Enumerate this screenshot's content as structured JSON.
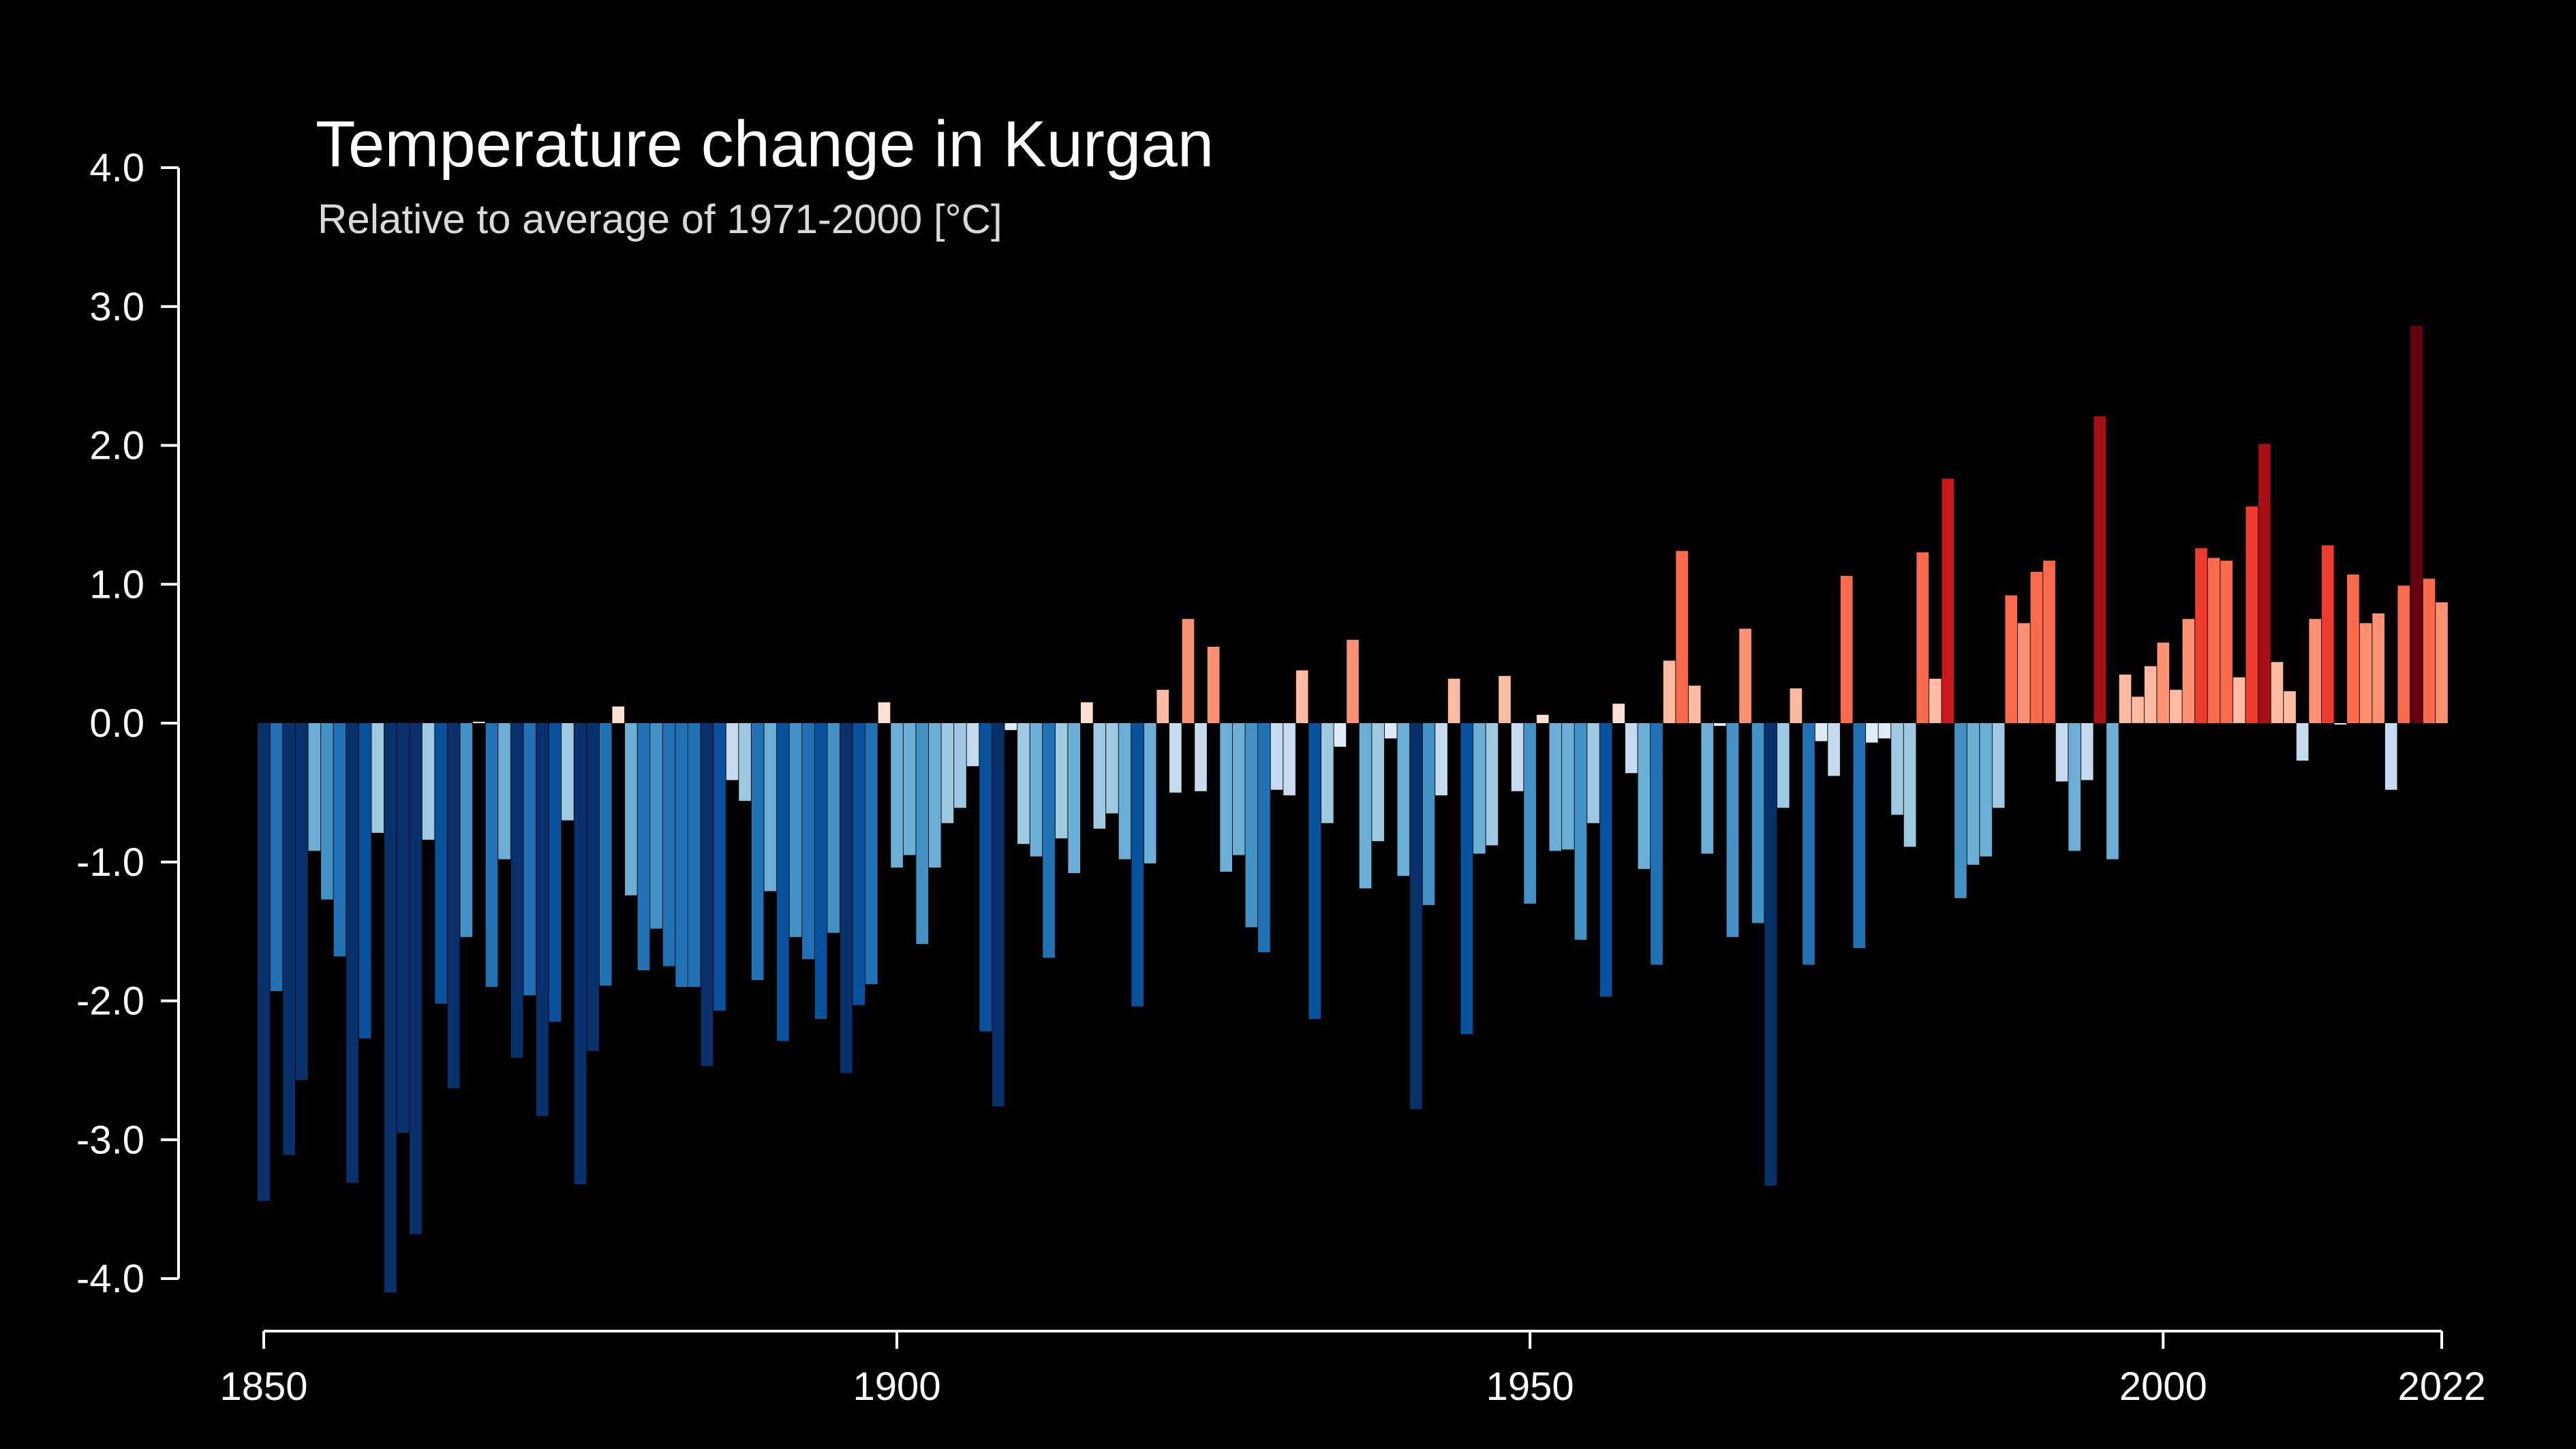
{
  "chart_data": {
    "type": "bar",
    "title": "Temperature change in Kurgan",
    "subtitle": "Relative to average of 1971-2000  [°C]",
    "xlabel": "",
    "ylabel": "",
    "xlim": [
      1850,
      2022
    ],
    "ylim": [
      -4.0,
      4.0
    ],
    "y_ticks": [
      "-4.0",
      "-3.0",
      "-2.0",
      "-1.0",
      "0.0",
      "1.0",
      "2.0",
      "3.0",
      "4.0"
    ],
    "x_ticks": [
      "1850",
      "1900",
      "1950",
      "2000",
      "2022"
    ],
    "grid": false,
    "legend": "none",
    "color_scale": {
      "cold": [
        "#08306b",
        "#08519c",
        "#2171b5",
        "#4292c6",
        "#6baed6",
        "#9ecae1",
        "#c6dbef",
        "#deebf7"
      ],
      "warm": [
        "#fee0d2",
        "#fcbba1",
        "#fc9272",
        "#fb6a4a",
        "#ef3b2c",
        "#cb181d",
        "#a50f15",
        "#67000d"
      ]
    },
    "years": [
      1850,
      1851,
      1852,
      1853,
      1854,
      1855,
      1856,
      1857,
      1858,
      1859,
      1860,
      1861,
      1862,
      1863,
      1864,
      1865,
      1866,
      1867,
      1868,
      1869,
      1870,
      1871,
      1872,
      1873,
      1874,
      1875,
      1876,
      1877,
      1878,
      1879,
      1880,
      1881,
      1882,
      1883,
      1884,
      1885,
      1886,
      1887,
      1888,
      1889,
      1890,
      1891,
      1892,
      1893,
      1894,
      1895,
      1896,
      1897,
      1898,
      1899,
      1900,
      1901,
      1902,
      1903,
      1904,
      1905,
      1906,
      1907,
      1908,
      1909,
      1910,
      1911,
      1912,
      1913,
      1914,
      1915,
      1916,
      1917,
      1918,
      1919,
      1920,
      1921,
      1922,
      1923,
      1924,
      1925,
      1926,
      1927,
      1928,
      1929,
      1930,
      1931,
      1932,
      1933,
      1934,
      1935,
      1936,
      1937,
      1938,
      1939,
      1940,
      1941,
      1942,
      1943,
      1944,
      1945,
      1946,
      1947,
      1948,
      1949,
      1950,
      1951,
      1952,
      1953,
      1954,
      1955,
      1956,
      1957,
      1958,
      1959,
      1960,
      1961,
      1962,
      1963,
      1964,
      1965,
      1966,
      1967,
      1968,
      1969,
      1970,
      1971,
      1972,
      1973,
      1974,
      1975,
      1976,
      1977,
      1978,
      1979,
      1980,
      1981,
      1982,
      1983,
      1984,
      1985,
      1986,
      1987,
      1988,
      1989,
      1990,
      1991,
      1992,
      1993,
      1994,
      1995,
      1996,
      1997,
      1998,
      1999,
      2000,
      2001,
      2002,
      2003,
      2004,
      2005,
      2006,
      2007,
      2008,
      2009,
      2010,
      2011,
      2012,
      2013,
      2014,
      2015,
      2016,
      2017,
      2018,
      2019,
      2020,
      2021,
      2022
    ],
    "values": [
      -3.44,
      -1.93,
      -3.11,
      -2.57,
      -0.92,
      -1.27,
      -1.68,
      -3.31,
      -2.27,
      -0.79,
      -4.1,
      -2.95,
      -3.68,
      -0.84,
      -2.02,
      -2.63,
      -1.54,
      0.01,
      -1.9,
      -0.98,
      -2.41,
      -1.96,
      -2.83,
      -2.15,
      -0.7,
      -3.32,
      -2.36,
      -1.89,
      0.12,
      -1.24,
      -1.78,
      -1.48,
      -1.75,
      -1.9,
      -1.9,
      -2.47,
      -2.07,
      -0.41,
      -0.56,
      -1.85,
      -1.21,
      -2.29,
      -1.54,
      -1.7,
      -2.13,
      -1.51,
      -2.52,
      -2.03,
      -1.88,
      0.15,
      -1.04,
      -0.95,
      -1.59,
      -1.04,
      -0.72,
      -0.61,
      -0.31,
      -2.22,
      -2.76,
      -0.05,
      -0.87,
      -0.96,
      -1.69,
      -0.83,
      -1.08,
      0.15,
      -0.76,
      -0.65,
      -0.98,
      -2.04,
      -1.01,
      0.24,
      -0.5,
      0.75,
      -0.49,
      0.55,
      -1.07,
      -0.95,
      -1.47,
      -1.65,
      -0.48,
      -0.52,
      0.38,
      -2.13,
      -0.72,
      -0.17,
      0.6,
      -1.19,
      -0.85,
      -0.11,
      -1.1,
      -2.78,
      -1.31,
      -0.52,
      0.32,
      -2.24,
      -0.94,
      -0.88,
      0.34,
      -0.49,
      -1.3,
      0.06,
      -0.92,
      -0.91,
      -1.56,
      -0.72,
      -1.97,
      0.14,
      -0.36,
      -1.05,
      -1.74,
      0.45,
      1.24,
      0.27,
      -0.94,
      -0.02,
      -1.54,
      0.68,
      -1.44,
      -3.33,
      -0.61,
      0.25,
      -1.74,
      -0.13,
      -0.38,
      1.06,
      -1.62,
      -0.14,
      -0.11,
      -0.66,
      -0.89,
      1.23,
      0.32,
      1.76,
      -1.26,
      -1.02,
      -0.96,
      -0.61,
      0.92,
      0.72,
      1.09,
      1.17,
      -0.42,
      -0.92,
      -0.41,
      2.21,
      -0.98,
      0.35,
      0.19,
      0.41,
      0.58,
      0.24,
      0.75,
      1.26,
      1.19,
      1.17,
      0.33,
      1.56,
      2.01,
      0.44,
      0.23,
      -0.27,
      0.75,
      1.28,
      -0.01,
      1.07,
      0.72,
      0.79,
      -0.48,
      0.99,
      2.86,
      1.04,
      0.87
    ]
  }
}
